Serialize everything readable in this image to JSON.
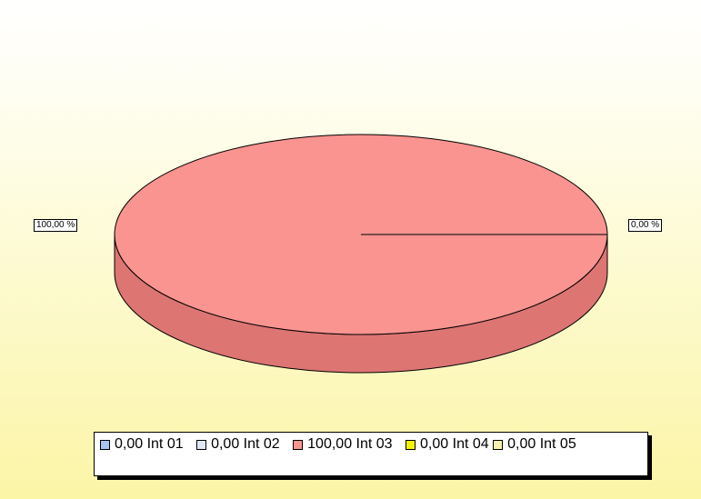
{
  "chart_data": {
    "type": "pie",
    "style": "3d",
    "slices": [
      {
        "label": "Int 01",
        "value": 0.0,
        "percent_label": "",
        "color": "#a9c4ef"
      },
      {
        "label": "Int 02",
        "value": 0.0,
        "percent_label": "",
        "color": "#dfe6f6"
      },
      {
        "label": "Int 03",
        "value": 100.0,
        "percent_label": "100,00 %",
        "color": "#f99490"
      },
      {
        "label": "Int 04",
        "value": 0.0,
        "percent_label": "",
        "color": "#f5f400"
      },
      {
        "label": "Int 05",
        "value": 0.0,
        "percent_label": "",
        "color": "#f7f0b0"
      }
    ],
    "data_labels": [
      "100,00 %",
      "0,00 %"
    ],
    "legend_position": "bottom",
    "legend": [
      {
        "text": "0,00 Int 01",
        "color": "#a9c4ef"
      },
      {
        "text": "0,00 Int 02",
        "color": "#dfe6f6"
      },
      {
        "text": "100,00 Int 03",
        "color": "#f99490"
      },
      {
        "text": "0,00 Int 04",
        "color": "#f5f400"
      },
      {
        "text": "0,00 Int 05",
        "color": "#f7f0b0"
      }
    ],
    "colors": {
      "slice_top": "#f99490",
      "slice_side": "#dd7573",
      "background_top": "#ffffff",
      "background_bottom": "#fbf5a6"
    }
  }
}
